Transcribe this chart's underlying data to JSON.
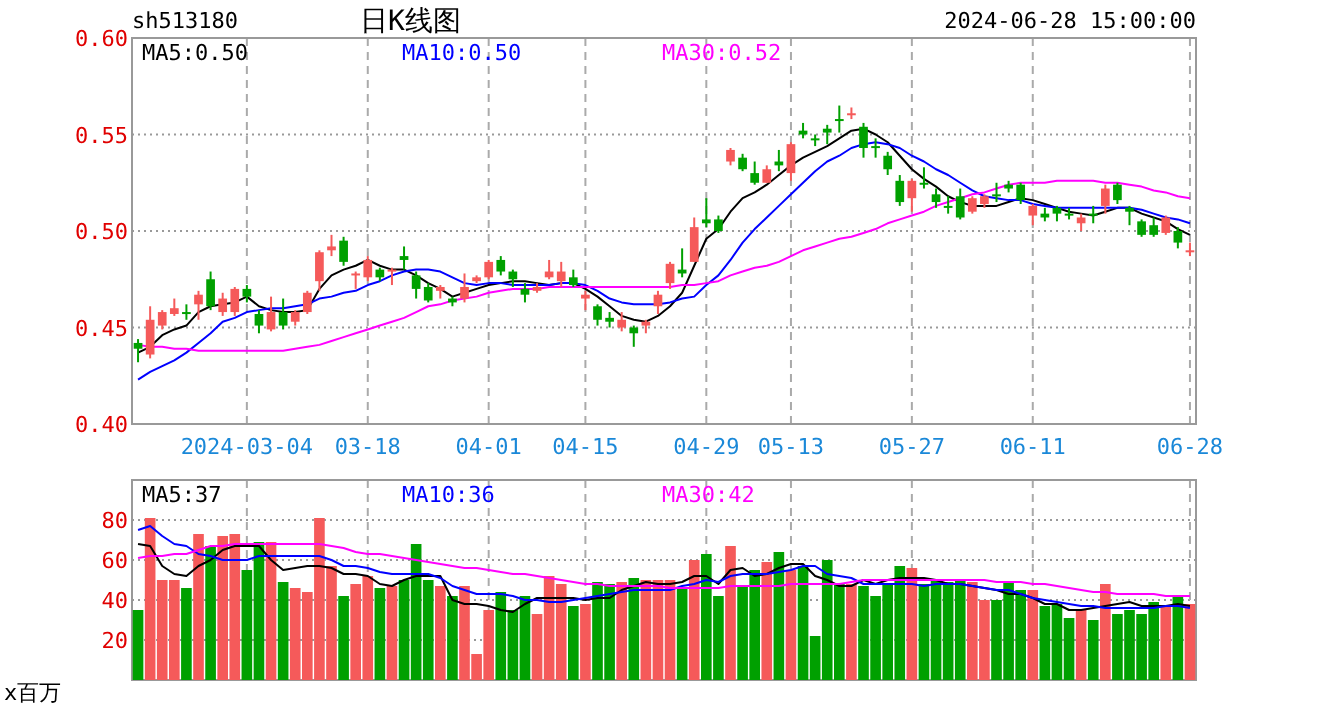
{
  "chart_data": [
    {
      "type": "candlestick",
      "title": "日K线图",
      "annotations": [
        "sh513180",
        "2024-06-28 15:00:00"
      ],
      "categories": [
        null,
        null,
        null,
        null,
        null,
        null,
        null,
        null,
        null,
        "2024-03-04",
        null,
        null,
        null,
        null,
        null,
        null,
        null,
        null,
        null,
        "03-18",
        null,
        null,
        null,
        null,
        null,
        null,
        null,
        null,
        null,
        "04-01",
        null,
        null,
        null,
        null,
        null,
        null,
        null,
        "04-15",
        null,
        null,
        null,
        null,
        null,
        null,
        null,
        null,
        null,
        "04-29",
        null,
        null,
        null,
        null,
        null,
        null,
        "05-13",
        null,
        null,
        null,
        null,
        null,
        null,
        null,
        null,
        null,
        "05-27",
        null,
        null,
        null,
        null,
        null,
        null,
        null,
        null,
        null,
        "06-11",
        null,
        null,
        null,
        null,
        null,
        null,
        null,
        null,
        null,
        null,
        null,
        null,
        "06-28"
      ],
      "ohlc": [
        [
          0.442,
          0.444,
          0.432,
          0.439
        ],
        [
          0.436,
          0.461,
          0.434,
          0.454
        ],
        [
          0.451,
          0.459,
          0.449,
          0.458
        ],
        [
          0.457,
          0.465,
          0.456,
          0.46
        ],
        [
          0.458,
          0.462,
          0.454,
          0.457
        ],
        [
          0.462,
          0.469,
          0.454,
          0.467
        ],
        [
          0.475,
          0.479,
          0.459,
          0.461
        ],
        [
          0.458,
          0.468,
          0.456,
          0.465
        ],
        [
          0.458,
          0.471,
          0.456,
          0.47
        ],
        [
          0.47,
          0.472,
          0.463,
          0.466
        ],
        [
          0.457,
          0.459,
          0.447,
          0.451
        ],
        [
          0.449,
          0.466,
          0.448,
          0.458
        ],
        [
          0.458,
          0.465,
          0.449,
          0.451
        ],
        [
          0.453,
          0.459,
          0.451,
          0.458
        ],
        [
          0.458,
          0.469,
          0.457,
          0.468
        ],
        [
          0.474,
          0.49,
          0.469,
          0.489
        ],
        [
          0.49,
          0.498,
          0.487,
          0.492
        ],
        [
          0.495,
          0.497,
          0.482,
          0.484
        ],
        [
          0.477,
          0.479,
          0.47,
          0.478
        ],
        [
          0.476,
          0.487,
          0.474,
          0.485
        ],
        [
          0.48,
          0.481,
          0.474,
          0.476
        ],
        [
          0.479,
          0.481,
          0.472,
          0.48
        ],
        [
          0.487,
          0.492,
          0.48,
          0.485
        ],
        [
          0.477,
          0.479,
          0.465,
          0.47
        ],
        [
          0.471,
          0.473,
          0.463,
          0.464
        ],
        [
          0.469,
          0.472,
          0.465,
          0.471
        ],
        [
          0.465,
          0.466,
          0.461,
          0.463
        ],
        [
          0.465,
          0.478,
          0.463,
          0.471
        ],
        [
          0.474,
          0.477,
          0.473,
          0.476
        ],
        [
          0.476,
          0.485,
          0.475,
          0.484
        ],
        [
          0.485,
          0.487,
          0.477,
          0.479
        ],
        [
          0.479,
          0.48,
          0.471,
          0.475
        ],
        [
          0.47,
          0.473,
          0.463,
          0.467
        ],
        [
          0.469,
          0.473,
          0.468,
          0.471
        ],
        [
          0.476,
          0.485,
          0.475,
          0.479
        ],
        [
          0.474,
          0.484,
          0.471,
          0.479
        ],
        [
          0.476,
          0.48,
          0.471,
          0.472
        ],
        [
          0.465,
          0.469,
          0.459,
          0.467
        ],
        [
          0.461,
          0.462,
          0.451,
          0.454
        ],
        [
          0.455,
          0.458,
          0.45,
          0.453
        ],
        [
          0.45,
          0.458,
          0.448,
          0.454
        ],
        [
          0.45,
          0.451,
          0.44,
          0.447
        ],
        [
          0.451,
          0.454,
          0.447,
          0.453
        ],
        [
          0.461,
          0.469,
          0.457,
          0.467
        ],
        [
          0.473,
          0.484,
          0.47,
          0.483
        ],
        [
          0.48,
          0.491,
          0.476,
          0.478
        ],
        [
          0.484,
          0.507,
          0.484,
          0.502
        ],
        [
          0.506,
          0.517,
          0.502,
          0.504
        ],
        [
          0.506,
          0.508,
          0.499,
          0.5
        ],
        [
          0.536,
          0.543,
          0.534,
          0.542
        ],
        [
          0.538,
          0.54,
          0.531,
          0.532
        ],
        [
          0.53,
          0.536,
          0.524,
          0.525
        ],
        [
          0.525,
          0.534,
          0.525,
          0.532
        ],
        [
          0.536,
          0.542,
          0.531,
          0.534
        ],
        [
          0.53,
          0.546,
          0.526,
          0.545
        ],
        [
          0.552,
          0.556,
          0.548,
          0.55
        ],
        [
          0.548,
          0.55,
          0.544,
          0.547
        ],
        [
          0.553,
          0.555,
          0.545,
          0.551
        ],
        [
          0.558,
          0.565,
          0.551,
          0.557
        ],
        [
          0.56,
          0.564,
          0.558,
          0.561
        ],
        [
          0.554,
          0.556,
          0.538,
          0.543
        ],
        [
          0.544,
          0.548,
          0.538,
          0.543
        ],
        [
          0.539,
          0.541,
          0.529,
          0.532
        ],
        [
          0.526,
          0.529,
          0.513,
          0.515
        ],
        [
          0.517,
          0.527,
          0.51,
          0.526
        ],
        [
          0.525,
          0.533,
          0.522,
          0.524
        ],
        [
          0.519,
          0.522,
          0.512,
          0.515
        ],
        [
          0.513,
          0.518,
          0.509,
          0.512
        ],
        [
          0.518,
          0.522,
          0.506,
          0.507
        ],
        [
          0.51,
          0.518,
          0.509,
          0.517
        ],
        [
          0.514,
          0.519,
          0.512,
          0.518
        ],
        [
          0.519,
          0.525,
          0.515,
          0.518
        ],
        [
          0.524,
          0.526,
          0.52,
          0.522
        ],
        [
          0.524,
          0.525,
          0.514,
          0.516
        ],
        [
          0.508,
          0.514,
          0.503,
          0.513
        ],
        [
          0.509,
          0.512,
          0.505,
          0.507
        ],
        [
          0.512,
          0.513,
          0.505,
          0.509
        ],
        [
          0.509,
          0.512,
          0.506,
          0.508
        ],
        [
          0.504,
          0.509,
          0.5,
          0.507
        ],
        [
          0.509,
          0.513,
          0.504,
          0.508
        ],
        [
          0.513,
          0.524,
          0.509,
          0.522
        ],
        [
          0.524,
          0.525,
          0.514,
          0.516
        ],
        [
          0.512,
          0.513,
          0.503,
          0.51
        ],
        [
          0.505,
          0.506,
          0.497,
          0.498
        ],
        [
          0.503,
          0.507,
          0.497,
          0.498
        ],
        [
          0.499,
          0.508,
          0.498,
          0.507
        ],
        [
          0.5,
          0.502,
          0.491,
          0.494
        ],
        [
          0.489,
          0.494,
          0.487,
          0.49
        ]
      ],
      "colors": [
        "#00a000",
        "#f55a5a",
        "#f55a5a",
        "#f55a5a",
        "#00a000",
        "#f55a5a",
        "#00a000",
        "#f55a5a",
        "#f55a5a",
        "#00a000",
        "#00a000",
        "#f55a5a",
        "#00a000",
        "#f55a5a",
        "#f55a5a",
        "#f55a5a",
        "#f55a5a",
        "#00a000",
        "#f55a5a",
        "#f55a5a",
        "#00a000",
        "#f55a5a",
        "#00a000",
        "#00a000",
        "#00a000",
        "#f55a5a",
        "#00a000",
        "#f55a5a",
        "#f55a5a",
        "#f55a5a",
        "#00a000",
        "#00a000",
        "#00a000",
        "#f55a5a",
        "#f55a5a",
        "#f55a5a",
        "#00a000",
        "#f55a5a",
        "#00a000",
        "#00a000",
        "#f55a5a",
        "#00a000",
        "#f55a5a",
        "#f55a5a",
        "#f55a5a",
        "#00a000",
        "#f55a5a",
        "#00a000",
        "#00a000",
        "#f55a5a",
        "#00a000",
        "#00a000",
        "#f55a5a",
        "#00a000",
        "#f55a5a",
        "#00a000",
        "#00a000",
        "#00a000",
        "#00a000",
        "#f55a5a",
        "#00a000",
        "#00a000",
        "#00a000",
        "#00a000",
        "#f55a5a",
        "#00a000",
        "#00a000",
        "#00a000",
        "#00a000",
        "#f55a5a",
        "#f55a5a",
        "#00a000",
        "#00a000",
        "#00a000",
        "#f55a5a",
        "#00a000",
        "#00a000",
        "#00a000",
        "#f55a5a",
        "#00a000",
        "#f55a5a",
        "#00a000",
        "#00a000",
        "#00a000",
        "#00a000",
        "#f55a5a",
        "#00a000",
        "#f55a5a"
      ],
      "series": [
        {
          "name": "MA5:0.50",
          "type": "line",
          "color": "#000000",
          "values": [
            0.437,
            0.44,
            0.446,
            0.449,
            0.451,
            0.458,
            0.461,
            0.462,
            0.463,
            0.466,
            0.461,
            0.459,
            0.458,
            0.458,
            0.459,
            0.47,
            0.477,
            0.48,
            0.482,
            0.485,
            0.482,
            0.48,
            0.48,
            0.477,
            0.473,
            0.47,
            0.466,
            0.468,
            0.47,
            0.472,
            0.473,
            0.474,
            0.474,
            0.473,
            0.472,
            0.473,
            0.473,
            0.47,
            0.466,
            0.461,
            0.456,
            0.454,
            0.453,
            0.456,
            0.461,
            0.468,
            0.482,
            0.496,
            0.501,
            0.51,
            0.517,
            0.52,
            0.524,
            0.529,
            0.534,
            0.538,
            0.541,
            0.544,
            0.548,
            0.552,
            0.553,
            0.55,
            0.546,
            0.539,
            0.532,
            0.527,
            0.523,
            0.518,
            0.515,
            0.513,
            0.513,
            0.513,
            0.515,
            0.517,
            0.516,
            0.514,
            0.512,
            0.51,
            0.509,
            0.508,
            0.51,
            0.512,
            0.512,
            0.509,
            0.507,
            0.505,
            0.501,
            0.498
          ]
        },
        {
          "name": "MA10:0.50",
          "type": "line",
          "color": "#0000ff",
          "values": [
            0.423,
            0.427,
            0.43,
            0.433,
            0.437,
            0.442,
            0.447,
            0.453,
            0.455,
            0.458,
            0.459,
            0.46,
            0.46,
            0.461,
            0.462,
            0.465,
            0.466,
            0.468,
            0.469,
            0.472,
            0.474,
            0.477,
            0.479,
            0.48,
            0.48,
            0.479,
            0.476,
            0.473,
            0.472,
            0.473,
            0.473,
            0.472,
            0.472,
            0.472,
            0.472,
            0.473,
            0.473,
            0.472,
            0.469,
            0.465,
            0.463,
            0.462,
            0.462,
            0.462,
            0.463,
            0.465,
            0.466,
            0.472,
            0.477,
            0.485,
            0.494,
            0.501,
            0.507,
            0.513,
            0.519,
            0.525,
            0.531,
            0.536,
            0.539,
            0.543,
            0.545,
            0.546,
            0.545,
            0.543,
            0.539,
            0.536,
            0.532,
            0.529,
            0.525,
            0.521,
            0.518,
            0.517,
            0.516,
            0.516,
            0.514,
            0.513,
            0.512,
            0.512,
            0.512,
            0.512,
            0.512,
            0.512,
            0.512,
            0.511,
            0.509,
            0.507,
            0.506,
            0.504
          ]
        },
        {
          "name": "MA30:0.52",
          "type": "line",
          "color": "#ff00ff",
          "values": [
            0.441,
            0.44,
            0.44,
            0.439,
            0.439,
            0.438,
            0.438,
            0.438,
            0.438,
            0.438,
            0.438,
            0.438,
            0.438,
            0.439,
            0.44,
            0.441,
            0.443,
            0.445,
            0.447,
            0.449,
            0.451,
            0.453,
            0.455,
            0.458,
            0.461,
            0.462,
            0.464,
            0.465,
            0.466,
            0.468,
            0.469,
            0.47,
            0.47,
            0.47,
            0.471,
            0.471,
            0.471,
            0.471,
            0.471,
            0.471,
            0.471,
            0.471,
            0.471,
            0.471,
            0.471,
            0.472,
            0.472,
            0.473,
            0.474,
            0.477,
            0.479,
            0.481,
            0.482,
            0.484,
            0.487,
            0.49,
            0.492,
            0.494,
            0.496,
            0.497,
            0.499,
            0.501,
            0.504,
            0.506,
            0.508,
            0.51,
            0.513,
            0.515,
            0.517,
            0.519,
            0.52,
            0.522,
            0.524,
            0.525,
            0.525,
            0.525,
            0.526,
            0.526,
            0.526,
            0.526,
            0.525,
            0.525,
            0.524,
            0.523,
            0.521,
            0.52,
            0.518,
            0.517
          ]
        }
      ],
      "ylim": [
        0.4,
        0.6
      ],
      "yticks": [
        {
          "value": 0.4,
          "label": "0.40"
        },
        {
          "value": 0.45,
          "label": "0.45"
        },
        {
          "value": 0.5,
          "label": "0.50"
        },
        {
          "value": 0.55,
          "label": "0.55"
        },
        {
          "value": 0.6,
          "label": "0.60"
        }
      ],
      "grid": true,
      "legend": "top"
    },
    {
      "type": "bar",
      "annotations": [
        "x百万"
      ],
      "categories": [
        null,
        null,
        null,
        null,
        null,
        null,
        null,
        null,
        null,
        null,
        null,
        null,
        null,
        null,
        null,
        null,
        null,
        null,
        null,
        null,
        null,
        null,
        null,
        null,
        null,
        null,
        null,
        null,
        null,
        null,
        null,
        null,
        null,
        null,
        null,
        null,
        null,
        null,
        null,
        null,
        null,
        null,
        null,
        null,
        null,
        null,
        null,
        null,
        null,
        null,
        null,
        null,
        null,
        null,
        null,
        null,
        null,
        null,
        null,
        null,
        null,
        null,
        null,
        null,
        null,
        null,
        null,
        null,
        null,
        null,
        null,
        null,
        null,
        null,
        null,
        null,
        null,
        null,
        null,
        null,
        null,
        null,
        null,
        null,
        null,
        null,
        null,
        null
      ],
      "values": [
        35,
        81,
        50,
        50,
        46,
        73,
        67,
        72,
        73,
        55,
        69,
        69,
        49,
        46,
        44,
        81,
        57,
        42,
        48,
        52,
        46,
        47,
        50,
        68,
        50,
        47,
        42,
        47,
        13,
        35,
        44,
        35,
        42,
        33,
        52,
        48,
        37,
        38,
        49,
        48,
        49,
        51,
        50,
        50,
        50,
        46,
        60,
        63,
        42,
        67,
        47,
        55,
        59,
        64,
        55,
        57,
        22,
        60,
        48,
        48,
        47,
        42,
        48,
        57,
        56,
        48,
        50,
        49,
        50,
        49,
        40,
        40,
        49,
        45,
        45,
        37,
        38,
        31,
        35,
        30,
        48,
        33,
        35,
        33,
        39,
        37,
        42,
        38
      ],
      "colors": [
        "#00a000",
        "#f55a5a",
        "#f55a5a",
        "#f55a5a",
        "#00a000",
        "#f55a5a",
        "#00a000",
        "#f55a5a",
        "#f55a5a",
        "#00a000",
        "#00a000",
        "#f55a5a",
        "#00a000",
        "#f55a5a",
        "#f55a5a",
        "#f55a5a",
        "#f55a5a",
        "#00a000",
        "#f55a5a",
        "#f55a5a",
        "#00a000",
        "#f55a5a",
        "#00a000",
        "#00a000",
        "#00a000",
        "#f55a5a",
        "#00a000",
        "#f55a5a",
        "#f55a5a",
        "#f55a5a",
        "#00a000",
        "#00a000",
        "#00a000",
        "#f55a5a",
        "#f55a5a",
        "#f55a5a",
        "#00a000",
        "#f55a5a",
        "#00a000",
        "#00a000",
        "#f55a5a",
        "#00a000",
        "#f55a5a",
        "#f55a5a",
        "#f55a5a",
        "#00a000",
        "#f55a5a",
        "#00a000",
        "#00a000",
        "#f55a5a",
        "#00a000",
        "#00a000",
        "#f55a5a",
        "#00a000",
        "#f55a5a",
        "#00a000",
        "#00a000",
        "#00a000",
        "#00a000",
        "#f55a5a",
        "#00a000",
        "#00a000",
        "#00a000",
        "#00a000",
        "#f55a5a",
        "#00a000",
        "#00a000",
        "#00a000",
        "#00a000",
        "#f55a5a",
        "#f55a5a",
        "#00a000",
        "#00a000",
        "#00a000",
        "#f55a5a",
        "#00a000",
        "#00a000",
        "#00a000",
        "#f55a5a",
        "#00a000",
        "#f55a5a",
        "#00a000",
        "#00a000",
        "#00a000",
        "#00a000",
        "#f55a5a",
        "#00a000",
        "#f55a5a"
      ],
      "series": [
        {
          "name": "MA5:37",
          "type": "line",
          "color": "#000000",
          "values": [
            68,
            67,
            57,
            53,
            52,
            57,
            60,
            65,
            67,
            67,
            67,
            60,
            55,
            56,
            57,
            57,
            56,
            53,
            53,
            52,
            48,
            47,
            50,
            52,
            52,
            52,
            40,
            38,
            38,
            37,
            35,
            34,
            38,
            41,
            41,
            41,
            41,
            40,
            41,
            41,
            45,
            47,
            49,
            48,
            48,
            49,
            52,
            52,
            48,
            55,
            56,
            52,
            53,
            56,
            58,
            58,
            52,
            50,
            47,
            47,
            50,
            48,
            50,
            51,
            51,
            51,
            50,
            48,
            48,
            47,
            46,
            45,
            43,
            43,
            41,
            38,
            38,
            35,
            35,
            36,
            37,
            38,
            39,
            37,
            37,
            37,
            38,
            37
          ]
        },
        {
          "name": "MA10:36",
          "type": "line",
          "color": "#0000ff",
          "values": [
            75,
            77,
            72,
            68,
            67,
            63,
            62,
            60,
            60,
            60,
            62,
            62,
            62,
            62,
            62,
            62,
            60,
            57,
            57,
            56,
            54,
            53,
            53,
            53,
            53,
            51,
            47,
            45,
            43,
            43,
            43,
            42,
            40,
            40,
            39,
            39,
            40,
            41,
            42,
            43,
            44,
            45,
            45,
            45,
            45,
            47,
            48,
            50,
            49,
            52,
            53,
            53,
            53,
            54,
            55,
            57,
            57,
            53,
            52,
            51,
            48,
            48,
            48,
            48,
            48,
            47,
            48,
            48,
            48,
            47,
            46,
            45,
            45,
            43,
            41,
            40,
            39,
            38,
            37,
            37,
            36,
            36,
            36,
            36,
            36,
            37,
            37,
            36
          ]
        },
        {
          "name": "MA30:42",
          "type": "line",
          "color": "#ff00ff",
          "values": [
            61,
            62,
            62,
            63,
            63,
            65,
            67,
            67,
            68,
            68,
            68,
            68,
            68,
            68,
            68,
            68,
            67,
            66,
            64,
            63,
            63,
            62,
            61,
            60,
            59,
            58,
            57,
            56,
            56,
            55,
            54,
            53,
            53,
            52,
            51,
            50,
            49,
            48,
            48,
            47,
            47,
            47,
            47,
            47,
            46,
            46,
            46,
            46,
            46,
            47,
            47,
            47,
            47,
            47,
            48,
            48,
            48,
            48,
            48,
            49,
            50,
            50,
            50,
            50,
            50,
            50,
            50,
            50,
            50,
            50,
            50,
            49,
            49,
            49,
            48,
            48,
            47,
            46,
            45,
            44,
            44,
            43,
            43,
            43,
            43,
            42,
            42,
            42
          ]
        }
      ],
      "ylim": [
        0,
        100
      ],
      "yticks": [
        20,
        40,
        60,
        80
      ],
      "tick_labels": "y",
      "grid": true,
      "legend": "top"
    }
  ]
}
